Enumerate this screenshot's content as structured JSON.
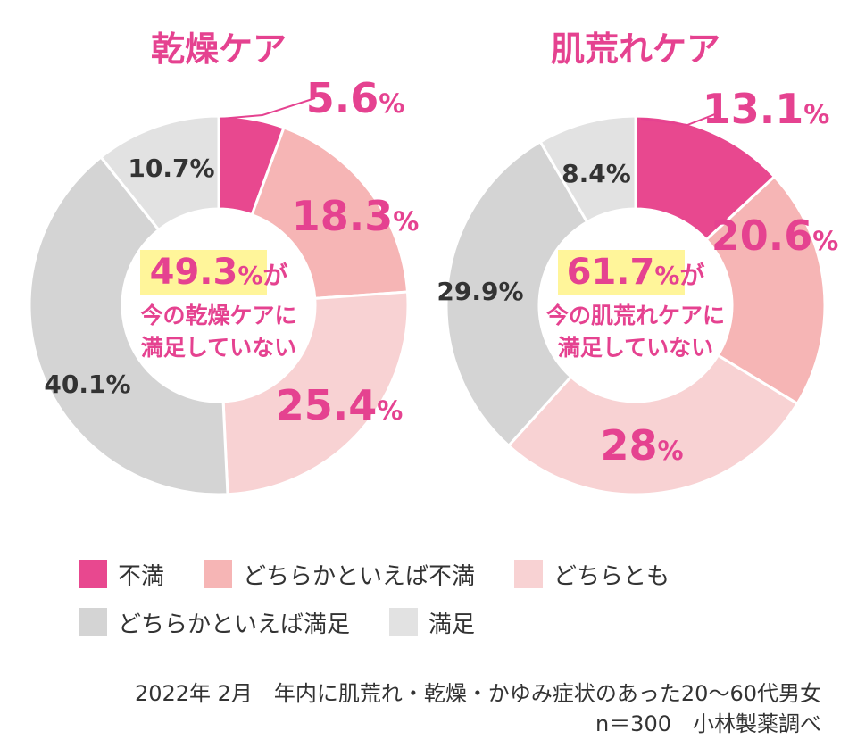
{
  "colors": {
    "fuman": "#e8488f",
    "dochiraka_fuman": "#f6b5b5",
    "dochiratomo": "#f8d2d3",
    "dochiraka_manzoku": "#d4d4d4",
    "manzoku": "#e2e2e2",
    "accent": "#e54290",
    "highlight": "#fff59a",
    "dark_text": "#333333"
  },
  "chart_data": [
    {
      "type": "pie",
      "style": "donut",
      "title": "乾燥ケア",
      "categories": [
        "不満",
        "どちらかといえば不満",
        "どちらとも",
        "どちらかといえば満足",
        "満足"
      ],
      "values": [
        5.6,
        18.3,
        25.4,
        40.1,
        10.7
      ],
      "labels": [
        "5.6",
        "18.3",
        "25.4",
        "40.1%",
        "10.7%"
      ],
      "center": {
        "highlight": "49.3",
        "unit_suffix": "%が",
        "line2": "今の乾燥ケアに",
        "line3": "満足していない"
      }
    },
    {
      "type": "pie",
      "style": "donut",
      "title": "肌荒れケア",
      "categories": [
        "不満",
        "どちらかといえば不満",
        "どちらとも",
        "どちらかといえば満足",
        "満足"
      ],
      "values": [
        13.1,
        20.6,
        28,
        29.9,
        8.4
      ],
      "labels": [
        "13.1",
        "20.6",
        "28",
        "29.9%",
        "8.4%"
      ],
      "center": {
        "highlight": "61.7",
        "unit_suffix": "%が",
        "line2": "今の肌荒れケアに",
        "line3": "満足していない"
      }
    }
  ],
  "legend": {
    "row1": [
      "不満",
      "どちらかといえば不満",
      "どちらとも"
    ],
    "row2": [
      "どちらかといえば満足",
      "満足"
    ]
  },
  "source": {
    "line1": "2022年 2月　年内に肌荒れ・乾燥・かゆみ症状のあった20〜60代男女",
    "line2": "n＝300　小林製薬調べ"
  }
}
